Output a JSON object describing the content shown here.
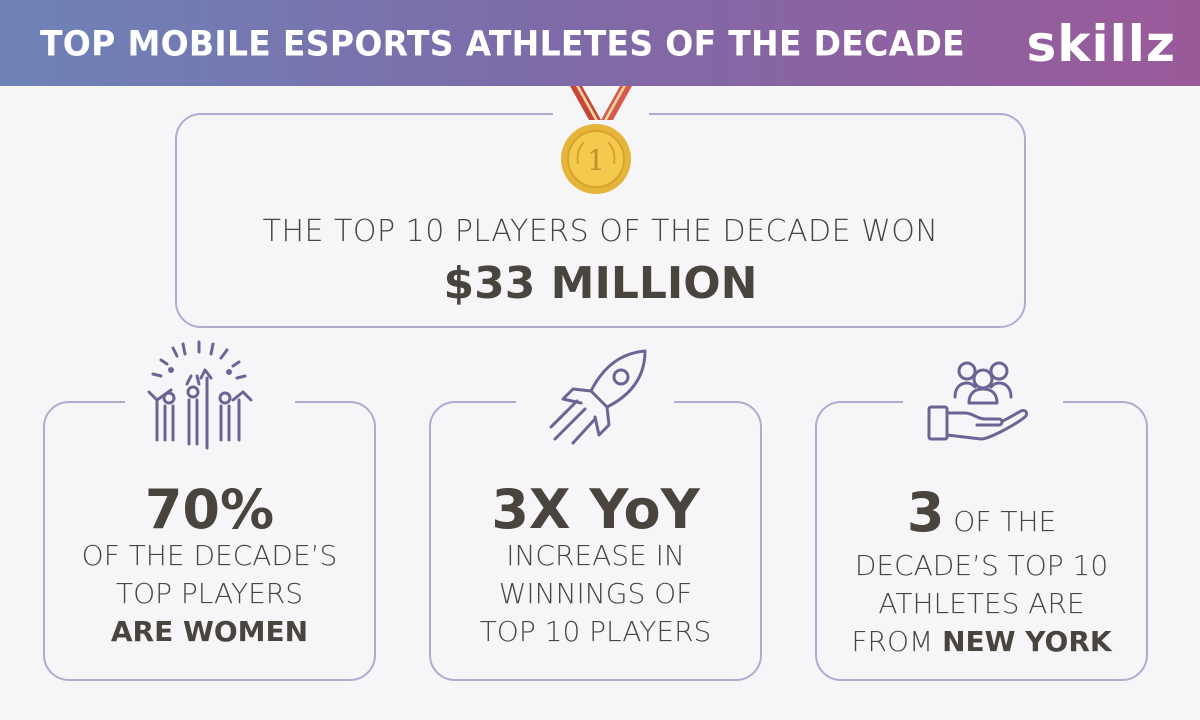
{
  "header": {
    "title": "TOP MOBILE ESPORTS ATHLETES OF THE DECADE",
    "logo": "skillz",
    "gradient_start": "#6e83b8",
    "gradient_end": "#9a5a9a"
  },
  "top_card": {
    "icon": "medal-icon",
    "medal_number": "1",
    "line": "THE TOP 10 PLAYERS OF THE DECADE WON",
    "highlight": "$33 MILLION"
  },
  "cards": [
    {
      "icon": "celebrating-people-icon",
      "big": "70%",
      "line1": "OF THE DECADE’S",
      "line2": "TOP PLAYERS",
      "line3_bold": "ARE WOMEN"
    },
    {
      "icon": "rocket-icon",
      "big": "3X YoY",
      "line1": "INCREASE IN",
      "line2": "WINNINGS OF",
      "line3": "TOP 10 PLAYERS"
    },
    {
      "icon": "group-in-hand-icon",
      "big": "3",
      "line1_suffix": " OF THE",
      "line2": "DECADE’S TOP 10",
      "line3": "ATHLETES ARE",
      "line4_prefix": "FROM ",
      "line4_bold": "NEW YORK"
    }
  ],
  "colors": {
    "border": "#b1abd2",
    "text": "#4a443f",
    "icon": "#6b6596",
    "medal_gold": "#e5b43a",
    "ribbon_red": "#c8453a"
  }
}
